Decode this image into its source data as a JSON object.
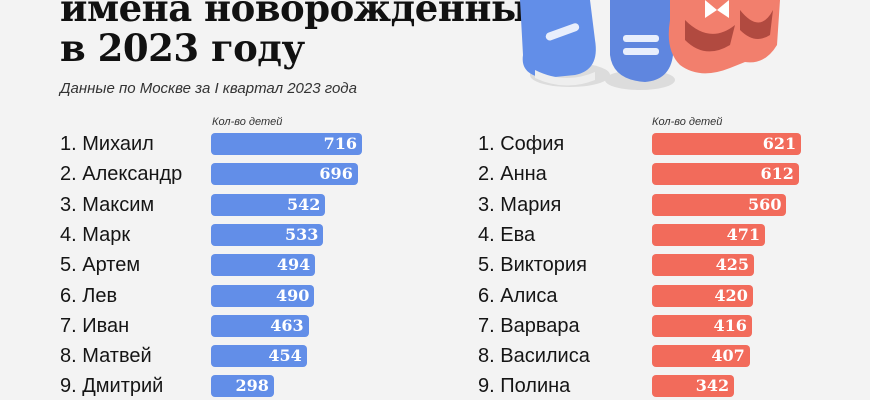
{
  "header": {
    "title_line1": "имена новорожденных",
    "title_line2": "в 2023 году",
    "subtitle": "Данные по Москве за I квартал 2023 года"
  },
  "illustration": "baby-shoes-blue-and-red",
  "colors": {
    "boys": "#628ee8",
    "girls": "#f26b5b"
  },
  "chart_data": [
    {
      "type": "bar",
      "orientation": "horizontal",
      "xlabel": "Кол-во детей",
      "xlim": [
        0,
        948
      ],
      "categories": [
        "1. Михаил",
        "2. Александр",
        "3. Максим",
        "4. Марк",
        "5. Артем",
        "6. Лев",
        "7. Иван",
        "8. Матвей",
        "9. Дмитрий"
      ],
      "values": [
        716,
        696,
        542,
        533,
        494,
        490,
        463,
        454,
        298
      ],
      "color": "#628ee8"
    },
    {
      "type": "bar",
      "orientation": "horizontal",
      "xlabel": "Кол-во детей",
      "xlim": [
        0,
        833
      ],
      "categories": [
        "1. София",
        "2. Анна",
        "3. Мария",
        "4. Ева",
        "5. Виктория",
        "6. Алиса",
        "7. Варвара",
        "8. Василиса",
        "9. Полина"
      ],
      "values": [
        621,
        612,
        560,
        471,
        425,
        420,
        416,
        407,
        342
      ],
      "color": "#f26b5b"
    }
  ]
}
